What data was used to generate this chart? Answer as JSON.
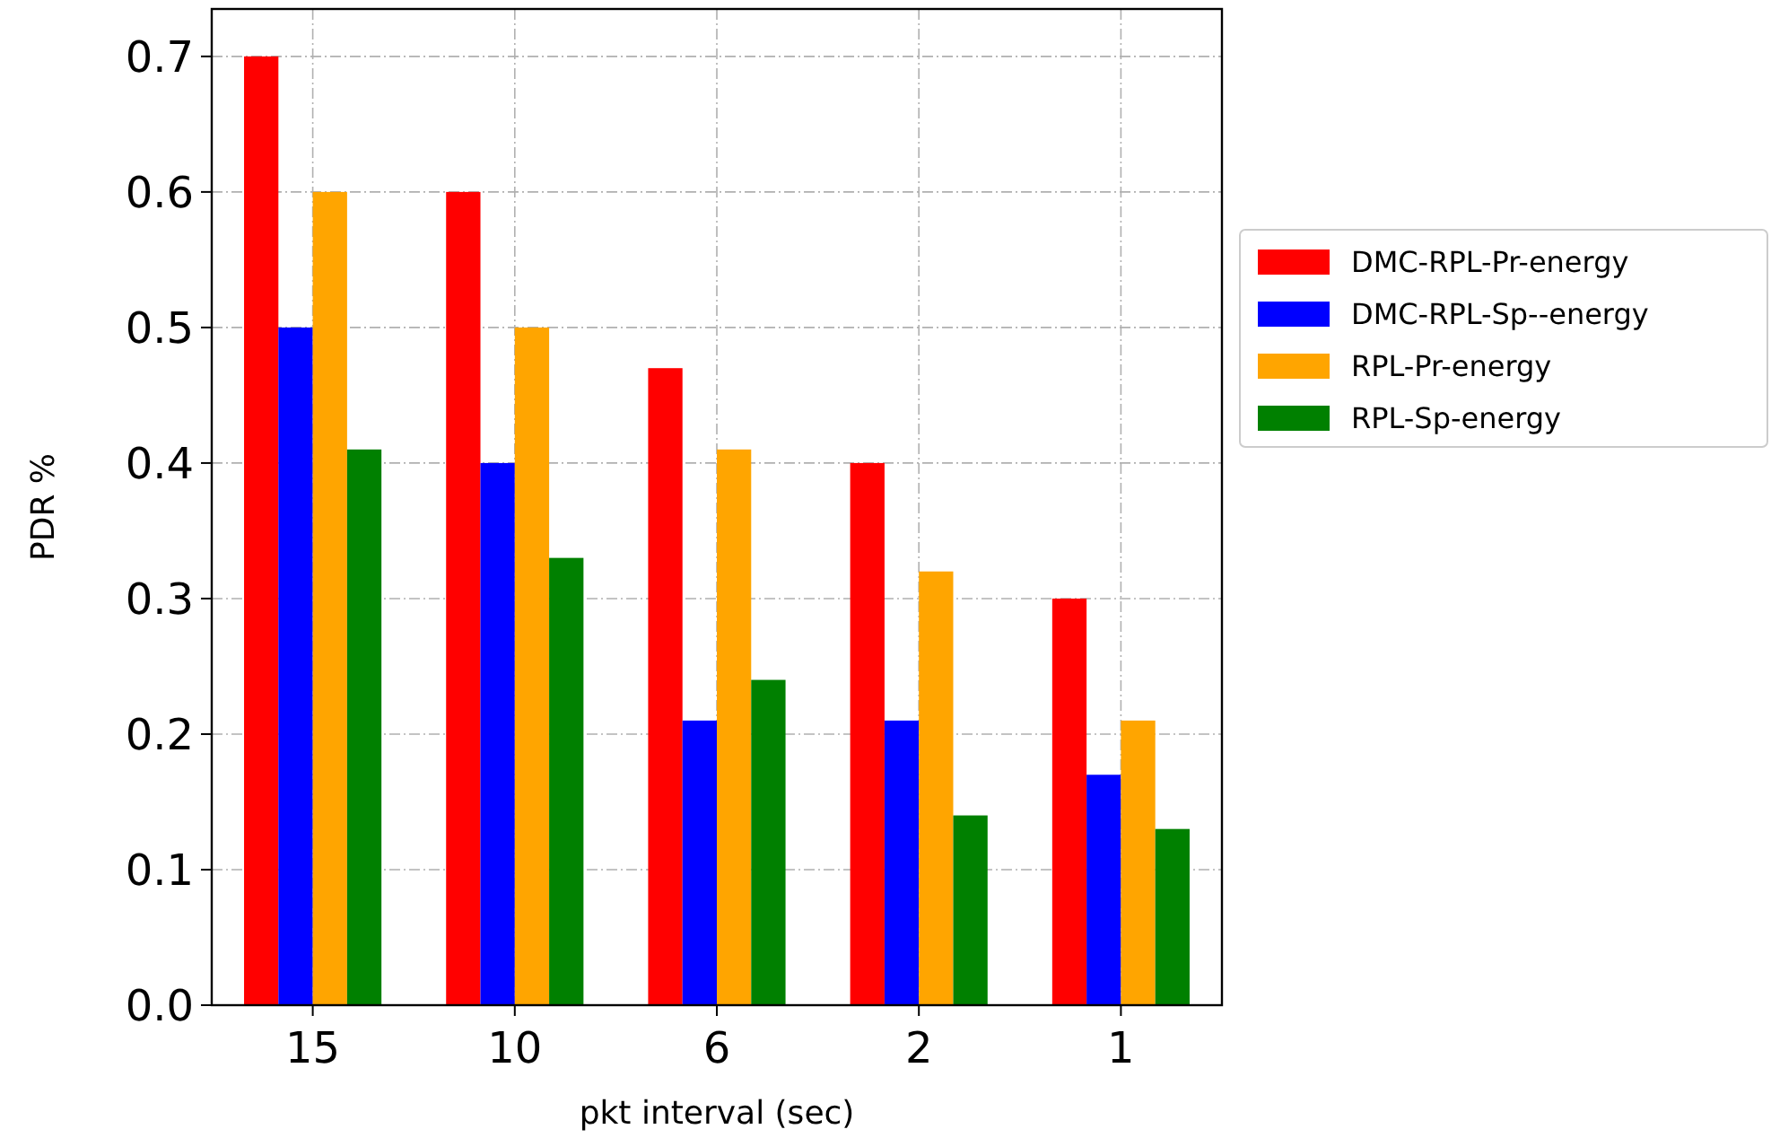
{
  "chart_data": {
    "type": "bar",
    "xlabel": "pkt interval (sec)",
    "ylabel": "PDR %",
    "categories": [
      "15",
      "10",
      "6",
      "2",
      "1"
    ],
    "series": [
      {
        "name": "DMC-RPL-Pr-energy",
        "color": "#ff0000",
        "values": [
          0.7,
          0.6,
          0.47,
          0.4,
          0.3
        ]
      },
      {
        "name": "DMC-RPL-Sp--energy",
        "color": "#0000ff",
        "values": [
          0.5,
          0.4,
          0.21,
          0.21,
          0.17
        ]
      },
      {
        "name": "RPL-Pr-energy",
        "color": "#ffa500",
        "values": [
          0.6,
          0.5,
          0.41,
          0.32,
          0.21
        ]
      },
      {
        "name": "RPL-Sp-energy",
        "color": "#008000",
        "values": [
          0.41,
          0.33,
          0.24,
          0.14,
          0.13
        ]
      }
    ],
    "ylim": [
      0,
      0.735
    ],
    "yticks": [
      {
        "value": 0,
        "label": "0.0"
      },
      {
        "value": 0.1,
        "label": "0.1"
      },
      {
        "value": 0.2,
        "label": "0.2"
      },
      {
        "value": 0.3,
        "label": "0.3"
      },
      {
        "value": 0.4,
        "label": "0.4"
      },
      {
        "value": 0.5,
        "label": "0.5"
      },
      {
        "value": 0.6,
        "label": "0.6"
      },
      {
        "value": 0.7,
        "label": "0.7"
      }
    ],
    "grid": true,
    "legend": "right"
  }
}
